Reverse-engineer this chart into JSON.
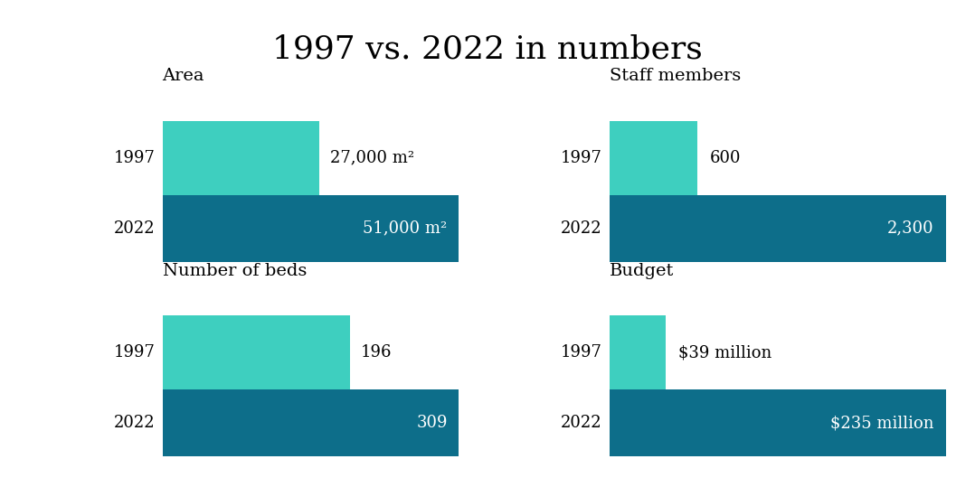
{
  "title": "1997 vs. 2022 in numbers",
  "title_fontsize": 26,
  "background_color": "#ffffff",
  "color_1997": "#3ECFBF",
  "color_2022": "#0D6E8A",
  "panels": [
    {
      "label": "Area",
      "val_1997": 27,
      "val_2022": 51,
      "max_val": 51,
      "label_1997": "27,000 m²",
      "label_2022": "51,000 m²",
      "label_1997_inside": false,
      "label_2022_inside": true
    },
    {
      "label": "Staff members",
      "val_1997": 600,
      "val_2022": 2300,
      "max_val": 2300,
      "label_1997": "600",
      "label_2022": "2,300",
      "label_1997_inside": false,
      "label_2022_inside": true
    },
    {
      "label": "Number of beds",
      "val_1997": 196,
      "val_2022": 309,
      "max_val": 309,
      "label_1997": "196",
      "label_2022": "309",
      "label_1997_inside": false,
      "label_2022_inside": true
    },
    {
      "label": "Budget",
      "val_1997": 39,
      "val_2022": 235,
      "max_val": 235,
      "label_1997": "$39 million",
      "label_2022": "$235 million",
      "label_1997_inside": false,
      "label_2022_inside": true
    }
  ],
  "year_label_fontsize": 13,
  "value_label_fontsize": 13,
  "category_label_fontsize": 14
}
